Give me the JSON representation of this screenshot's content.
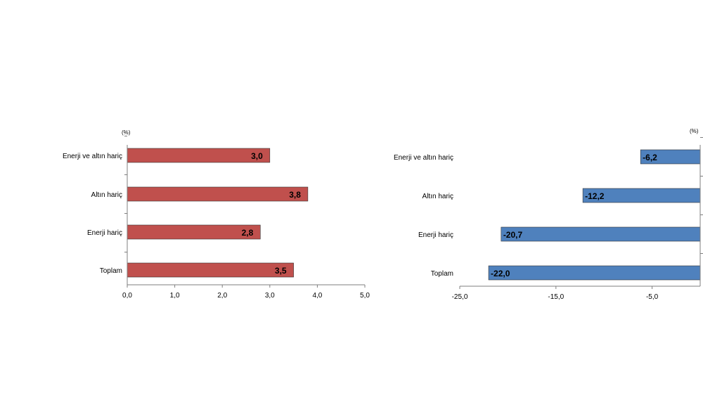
{
  "chart_data": [
    {
      "type": "bar",
      "orientation": "horizontal",
      "unit_label": "(%)",
      "categories": [
        "Enerji ve altın hariç",
        "Altın hariç",
        "Enerji hariç",
        "Toplam"
      ],
      "values": [
        3.0,
        3.8,
        2.8,
        3.5
      ],
      "data_labels": [
        "3,0",
        "3,8",
        "2,8",
        "3,5"
      ],
      "xlim": [
        0,
        5
      ],
      "ticks": [
        0,
        1,
        2,
        3,
        4,
        5
      ],
      "tick_labels": [
        "0,0",
        "1,0",
        "2,0",
        "3,0",
        "4,0",
        "5,0"
      ],
      "color": "#c0504d",
      "grid": false
    },
    {
      "type": "bar",
      "orientation": "horizontal",
      "unit_label": "(%)",
      "categories": [
        "Enerji ve altın hariç",
        "Altın hariç",
        "Enerji hariç",
        "Toplam"
      ],
      "values": [
        -6.2,
        -12.2,
        -20.7,
        -22.0
      ],
      "data_labels": [
        "-6,2",
        "-12,2",
        "-20,7",
        "-22,0"
      ],
      "xlim": [
        -25,
        0
      ],
      "ticks": [
        -25,
        -15,
        -5
      ],
      "tick_labels": [
        "-25,0",
        "-15,0",
        "-5,0"
      ],
      "color": "#4f81bd",
      "grid": false
    }
  ]
}
